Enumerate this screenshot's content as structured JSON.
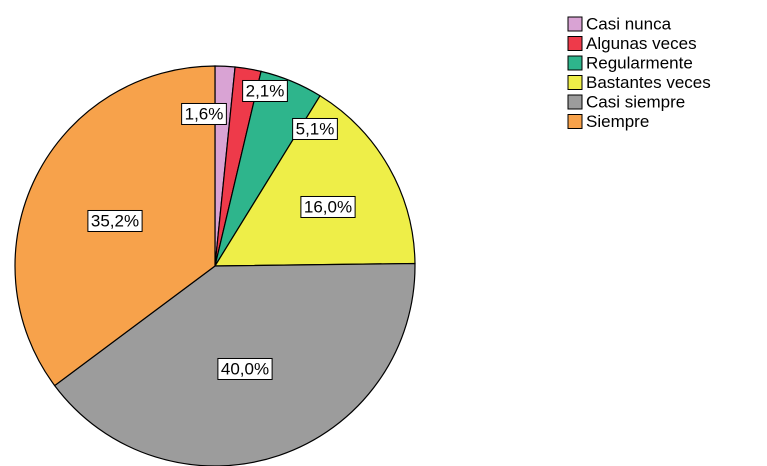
{
  "chart_data": {
    "type": "pie",
    "categories": [
      "Casi nunca",
      "Algunas veces",
      "Regularmente",
      "Bastantes veces",
      "Casi siempre",
      "Siempre"
    ],
    "values": [
      1.6,
      2.1,
      5.1,
      16.0,
      40.0,
      35.2
    ],
    "value_labels": [
      "1,6%",
      "2,1%",
      "5,1%",
      "16,0%",
      "40,0%",
      "35,2%"
    ],
    "colors": [
      "#d9a3d4",
      "#ee3a4a",
      "#2eb58c",
      "#eeee48",
      "#9c9c9c",
      "#f7a24b"
    ],
    "legend": "top-right"
  }
}
